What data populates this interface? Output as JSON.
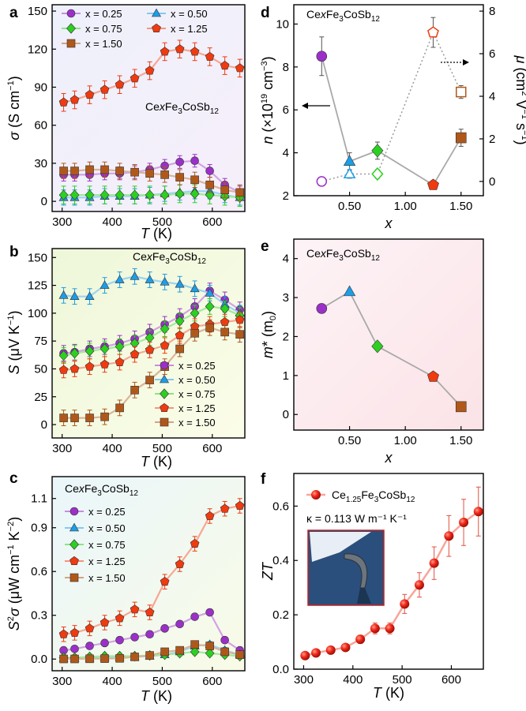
{
  "series_styles": [
    {
      "name": "x = 0.25",
      "color": "#9b30c8",
      "marker": "circle"
    },
    {
      "name": "x = 0.50",
      "color": "#1e9de6",
      "marker": "triangle"
    },
    {
      "name": "x = 0.75",
      "color": "#2cd020",
      "marker": "diamond"
    },
    {
      "name": "x = 1.25",
      "color": "#f03a10",
      "marker": "pentagon"
    },
    {
      "name": "x = 1.50",
      "color": "#b0581a",
      "marker": "square"
    }
  ],
  "chart_data": [
    {
      "id": "a",
      "type": "line",
      "label": "a",
      "xlabel": "T (K)",
      "ylabel": "σ (S cm⁻¹)",
      "xlim": [
        280,
        665
      ],
      "ylim": [
        -8,
        155
      ],
      "xticks": [
        300,
        400,
        500,
        600
      ],
      "yticks": [
        0,
        30,
        60,
        90,
        120,
        150
      ],
      "annotation": "CexFe3CoSb12",
      "x": [
        303,
        325,
        355,
        385,
        415,
        445,
        475,
        505,
        535,
        565,
        595,
        625,
        655
      ],
      "series": [
        {
          "name": "x = 0.25",
          "values": [
            21,
            21,
            21,
            22,
            22,
            23,
            25,
            28,
            31,
            32,
            24,
            13,
            7
          ]
        },
        {
          "name": "x = 0.50",
          "values": [
            3,
            3,
            3,
            4,
            4,
            4,
            5,
            6,
            7,
            8,
            8,
            5,
            3
          ]
        },
        {
          "name": "x = 0.75",
          "values": [
            5,
            5,
            5,
            5,
            5,
            5,
            5,
            5,
            6,
            6,
            5,
            4,
            3
          ]
        },
        {
          "name": "x = 1.25",
          "values": [
            78,
            80,
            84,
            88,
            92,
            97,
            103,
            118,
            120,
            118,
            114,
            107,
            105
          ]
        },
        {
          "name": "x = 1.50",
          "values": [
            24,
            24,
            25,
            25,
            24,
            23,
            22,
            21,
            19,
            17,
            13,
            9,
            7
          ]
        }
      ],
      "error_scale": [
        5,
        6,
        7,
        7,
        6,
        6
      ]
    },
    {
      "id": "b",
      "type": "line",
      "label": "b",
      "xlabel": "T (K)",
      "ylabel": "S (μV K⁻¹)",
      "xlim": [
        280,
        665
      ],
      "ylim": [
        -12,
        158
      ],
      "xticks": [
        300,
        400,
        500,
        600
      ],
      "yticks": [
        0,
        25,
        50,
        75,
        100,
        125,
        150
      ],
      "annotation": "CexFe3CoSb12",
      "x": [
        303,
        325,
        355,
        385,
        415,
        445,
        475,
        505,
        535,
        565,
        595,
        625,
        655
      ],
      "series": [
        {
          "name": "x = 0.25",
          "values": [
            64,
            65,
            68,
            70,
            73,
            77,
            83,
            90,
            97,
            106,
            120,
            112,
            103
          ]
        },
        {
          "name": "x = 0.50",
          "values": [
            116,
            115,
            115,
            125,
            130,
            133,
            130,
            128,
            126,
            122,
            118,
            108,
            100
          ]
        },
        {
          "name": "x = 0.75",
          "values": [
            62,
            64,
            66,
            68,
            70,
            73,
            78,
            86,
            93,
            100,
            106,
            104,
            98
          ]
        },
        {
          "name": "x = 1.25",
          "values": [
            49,
            50,
            52,
            54,
            56,
            63,
            67,
            71,
            80,
            88,
            90,
            92,
            94
          ]
        },
        {
          "name": "x = 1.50",
          "values": [
            6,
            6,
            6,
            7,
            15,
            31,
            40,
            52,
            68,
            82,
            87,
            83,
            81
          ]
        }
      ],
      "error_scale": [
        7,
        7,
        7,
        7,
        7,
        7
      ]
    },
    {
      "id": "c",
      "type": "line",
      "label": "c",
      "xlabel": "T (K)",
      "ylabel": "S²σ (μW cm⁻¹ K⁻²)",
      "xlim": [
        280,
        665
      ],
      "ylim": [
        -0.08,
        1.25
      ],
      "xticks": [
        300,
        400,
        500,
        600
      ],
      "yticks": [
        0.0,
        0.3,
        0.6,
        0.9
      ],
      "yticks_extra": [
        1.1
      ],
      "annotation": "CexFe3CoSb12",
      "x": [
        303,
        325,
        355,
        385,
        415,
        445,
        475,
        505,
        535,
        565,
        595,
        625,
        655
      ],
      "series": [
        {
          "name": "x = 0.25",
          "values": [
            0.06,
            0.07,
            0.09,
            0.11,
            0.13,
            0.15,
            0.17,
            0.21,
            0.24,
            0.29,
            0.32,
            0.13,
            0.06
          ]
        },
        {
          "name": "x = 0.50",
          "values": [
            0.005,
            0.006,
            0.007,
            0.01,
            0.012,
            0.015,
            0.02,
            0.03,
            0.05,
            0.09,
            0.1,
            0.06,
            0.03
          ]
        },
        {
          "name": "x = 0.75",
          "values": [
            0.01,
            0.01,
            0.015,
            0.02,
            0.02,
            0.02,
            0.025,
            0.03,
            0.04,
            0.05,
            0.04,
            0.03,
            0.02
          ]
        },
        {
          "name": "x = 1.25",
          "values": [
            0.17,
            0.18,
            0.21,
            0.25,
            0.28,
            0.34,
            0.32,
            0.53,
            0.65,
            0.79,
            0.98,
            1.03,
            1.05
          ]
        },
        {
          "name": "x = 1.50",
          "values": [
            0.001,
            0.001,
            0.002,
            0.003,
            0.005,
            0.015,
            0.025,
            0.05,
            0.06,
            0.1,
            0.09,
            0.05,
            0.03
          ]
        }
      ],
      "error_scale": [
        0.02,
        0.02,
        0.02,
        0.05,
        0.02,
        0.02
      ]
    },
    {
      "id": "d",
      "type": "scatter",
      "label": "d",
      "xlabel": "x",
      "ylabel": "n (×10¹⁹ cm⁻³)",
      "ylabel_right": "μ (cm² V⁻¹ s⁻¹)",
      "xlim": [
        0.0,
        1.7
      ],
      "ylim": [
        2,
        10.9
      ],
      "ylim_right": [
        -0.67,
        8.3
      ],
      "xticks": [
        0.5,
        1.0,
        1.5
      ],
      "xtick_labels": [
        "0.50",
        "1.00",
        "1.50"
      ],
      "yticks": [
        2,
        4,
        6,
        8,
        10
      ],
      "yticks_right": [
        0,
        2,
        4,
        6,
        8
      ],
      "annotation": "CexFe3CoSb12",
      "x": [
        0.25,
        0.5,
        0.75,
        1.25,
        1.5
      ],
      "n_values": [
        8.5,
        3.6,
        4.1,
        2.5,
        4.7
      ],
      "n_err": [
        0.9,
        0.4,
        0.4,
        0.15,
        0.4
      ],
      "mu_values": [
        0.0,
        0.35,
        0.35,
        7.0,
        4.2
      ],
      "mu_err": [
        0.0,
        0.2,
        0.2,
        0.7,
        0.3
      ]
    },
    {
      "id": "e",
      "type": "scatter",
      "label": "e",
      "xlabel": "x",
      "ylabel": "m* (m₀)",
      "xlim": [
        0.0,
        1.7
      ],
      "ylim": [
        -0.4,
        4.5
      ],
      "xticks": [
        0.5,
        1.0,
        1.5
      ],
      "xtick_labels": [
        "0.50",
        "1.00",
        "1.50"
      ],
      "yticks": [
        0,
        1,
        2,
        3,
        4
      ],
      "annotation": "CexFe3CoSb12",
      "x": [
        0.25,
        0.5,
        0.75,
        1.25,
        1.5
      ],
      "values": [
        2.72,
        3.15,
        1.75,
        0.97,
        0.2
      ]
    },
    {
      "id": "f",
      "type": "line",
      "label": "f",
      "xlabel": "T (K)",
      "ylabel": "ZT",
      "xlim": [
        280,
        665
      ],
      "ylim": [
        0.0,
        0.72
      ],
      "xticks": [
        300,
        400,
        500,
        600
      ],
      "yticks": [
        0.0,
        0.2,
        0.4,
        0.6
      ],
      "legend": "Ce1.25Fe3CoSb12",
      "kappa_label": "κ = 0.113 W m⁻¹ K⁻¹",
      "color": "#f03a10",
      "x": [
        303,
        325,
        355,
        385,
        415,
        445,
        475,
        505,
        535,
        565,
        595,
        625,
        655
      ],
      "values": [
        0.05,
        0.06,
        0.07,
        0.08,
        0.11,
        0.15,
        0.15,
        0.24,
        0.31,
        0.39,
        0.49,
        0.54,
        0.58
      ],
      "err": [
        0.01,
        0.01,
        0.01,
        0.01,
        0.015,
        0.02,
        0.02,
        0.035,
        0.045,
        0.06,
        0.075,
        0.085,
        0.09
      ]
    }
  ]
}
